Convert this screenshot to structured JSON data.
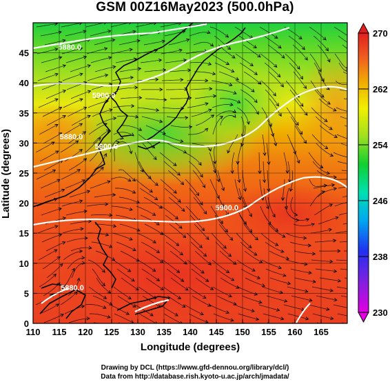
{
  "title": "GSM 00Z16May2023 (500.0hPa)",
  "map": {
    "xlabel": "Longitude (degrees)",
    "ylabel": "Latitude  (degrees)",
    "lon_ticks": [
      "110",
      "115",
      "120",
      "125",
      "130",
      "135",
      "140",
      "145",
      "150",
      "155",
      "160",
      "165"
    ],
    "lat_ticks": [
      "0",
      "5",
      "10",
      "15",
      "20",
      "25",
      "30",
      "35",
      "40",
      "45"
    ],
    "lon_range": [
      110,
      170
    ],
    "lat_range": [
      0,
      50
    ],
    "contour_labels": [
      {
        "text": "5880.0",
        "lon": 117,
        "lat": 45.5
      },
      {
        "text": "5880.0",
        "lon": 117.3,
        "lat": 30.6
      },
      {
        "text": "5900.0",
        "lon": 123.5,
        "lat": 37.5
      },
      {
        "text": "5900.0",
        "lon": 124,
        "lat": 29
      },
      {
        "text": "5900.0",
        "lon": 147,
        "lat": 18.8
      },
      {
        "text": "5880.0",
        "lon": 117.5,
        "lat": 5.5
      }
    ]
  },
  "colorbar": {
    "ticks": [
      "270",
      "262",
      "254",
      "246",
      "238",
      "230"
    ],
    "range": [
      230,
      270
    ],
    "colors": [
      "#e000e0",
      "#3030f0",
      "#00b0f0",
      "#00e0a0",
      "#10d030",
      "#a0e020",
      "#f0f000",
      "#f0b000",
      "#f06020",
      "#e02020"
    ]
  },
  "credits": {
    "line1": "Drawing by DCL (https://www.gfd-dennou.org/library/dcl/)",
    "line2": "Data from http://database.rish.kyoto-u.ac.jp/arch/jmadata/"
  }
}
